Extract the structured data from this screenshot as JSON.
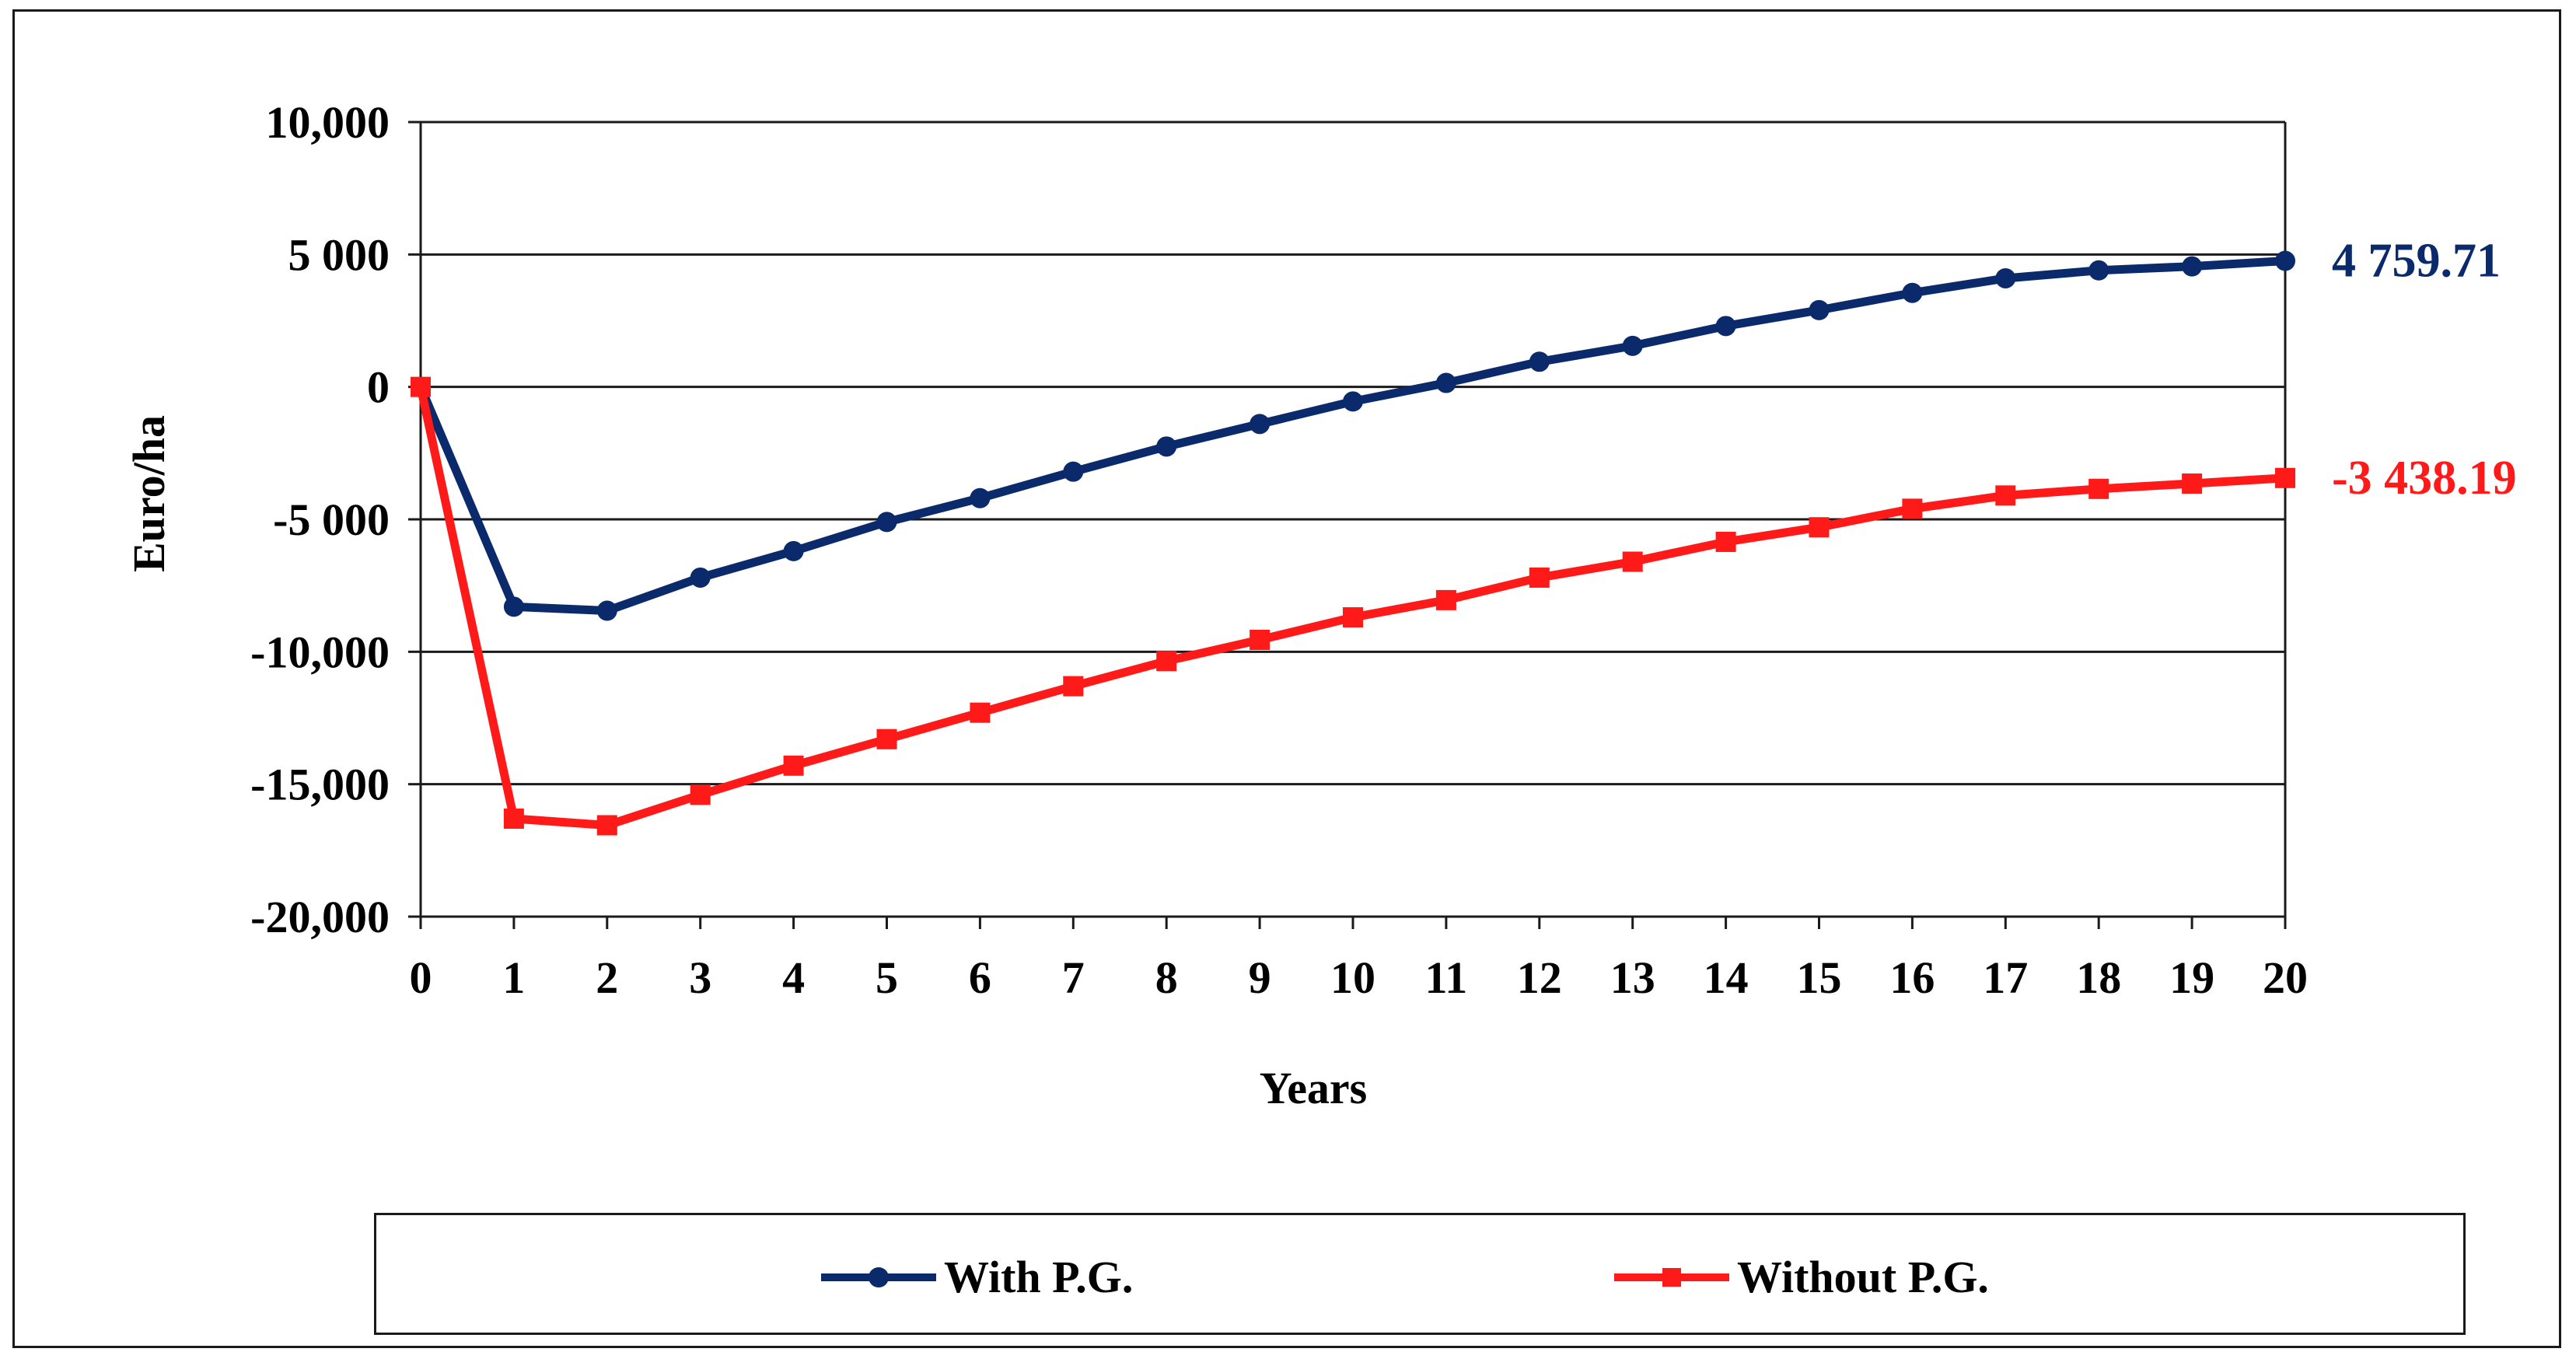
{
  "chart_data": {
    "type": "line",
    "xlabel": "Years",
    "ylabel": "Euro/ha",
    "x": [
      0,
      1,
      2,
      3,
      4,
      5,
      6,
      7,
      8,
      9,
      10,
      11,
      12,
      13,
      14,
      15,
      16,
      17,
      18,
      19,
      20
    ],
    "x_tick_labels": [
      "0",
      "1",
      "2",
      "3",
      "4",
      "5",
      "6",
      "7",
      "8",
      "9",
      "10",
      "11",
      "12",
      "13",
      "14",
      "15",
      "16",
      "17",
      "18",
      "19",
      "20"
    ],
    "y_ticks": [
      10000,
      5000,
      0,
      -5000,
      -10000,
      -15000,
      -20000
    ],
    "y_tick_labels": [
      "10,000",
      "5 000",
      "0",
      "-5 000",
      "-10,000",
      "-15,000",
      "-20,000"
    ],
    "ylim": [
      -20000,
      10000
    ],
    "grid": "horizontal",
    "legend_position": "bottom",
    "series": [
      {
        "name": "With P.G.",
        "color": "#0b2a6b",
        "marker": "circle",
        "values": [
          0,
          -8300,
          -8450,
          -7200,
          -6200,
          -5100,
          -4200,
          -3200,
          -2250,
          -1400,
          -550,
          150,
          950,
          1550,
          2300,
          2900,
          3550,
          4100,
          4400,
          4550,
          4759.71
        ],
        "end_label": "4 759.71"
      },
      {
        "name": "Without P.G.",
        "color": "#ff1a1a",
        "marker": "square",
        "values": [
          0,
          -16300,
          -16550,
          -15400,
          -14300,
          -13300,
          -12300,
          -11300,
          -10350,
          -9550,
          -8700,
          -8050,
          -7200,
          -6600,
          -5850,
          -5300,
          -4600,
          -4100,
          -3850,
          -3650,
          -3438.19
        ],
        "end_label": "-3 438.19"
      }
    ]
  }
}
